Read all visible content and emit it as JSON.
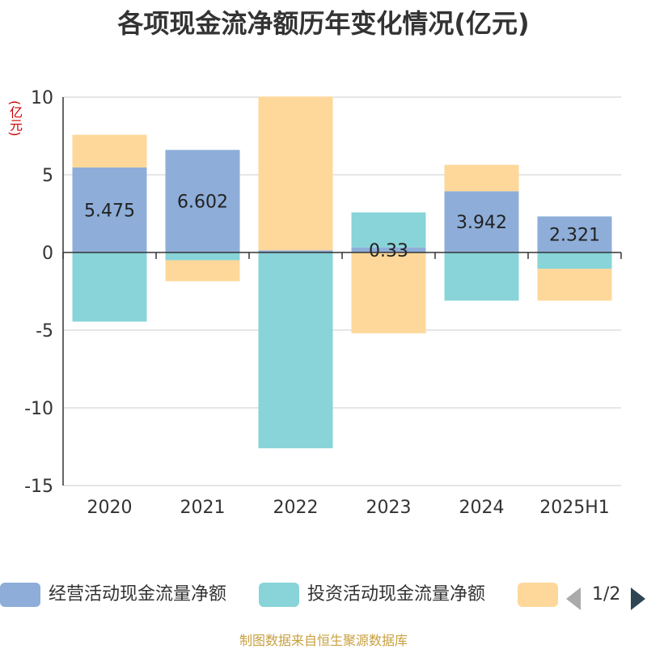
{
  "title": "各项现金流净额历年变化情况(亿元)",
  "unit": "(亿元)",
  "source": "制图数据来自恒生聚源数据库",
  "pager": "1/2",
  "colors": {
    "operating": "#8eaed9",
    "investing": "#88d4d8",
    "financing": "#fdd89a",
    "grid": "#cccccc",
    "axis": "#333333"
  },
  "chart_data": {
    "type": "bar",
    "stacked": true,
    "categories": [
      "2020",
      "2021",
      "2022",
      "2023",
      "2024",
      "2025H1"
    ],
    "ylim": [
      -15,
      10
    ],
    "yticks": [
      10,
      5,
      0,
      -5,
      -10,
      -15
    ],
    "grid": true,
    "legend_position": "bottom",
    "series": [
      {
        "name": "经营活动现金流量净额",
        "color": "#8eaed9",
        "values": [
          5.475,
          6.602,
          0.137,
          0.33,
          3.942,
          2.321
        ],
        "labels": [
          "5.475",
          "6.602",
          "",
          "0.33",
          "3.942",
          "2.321"
        ]
      },
      {
        "name": "投资活动现金流量净额",
        "color": "#88d4d8",
        "values": [
          -4.45,
          -0.5,
          -12.6,
          2.25,
          -3.1,
          -1.05
        ]
      },
      {
        "name": "",
        "color": "#fdd89a",
        "values": [
          2.1,
          -1.35,
          9.9,
          -5.2,
          1.7,
          -2.05
        ]
      }
    ]
  }
}
